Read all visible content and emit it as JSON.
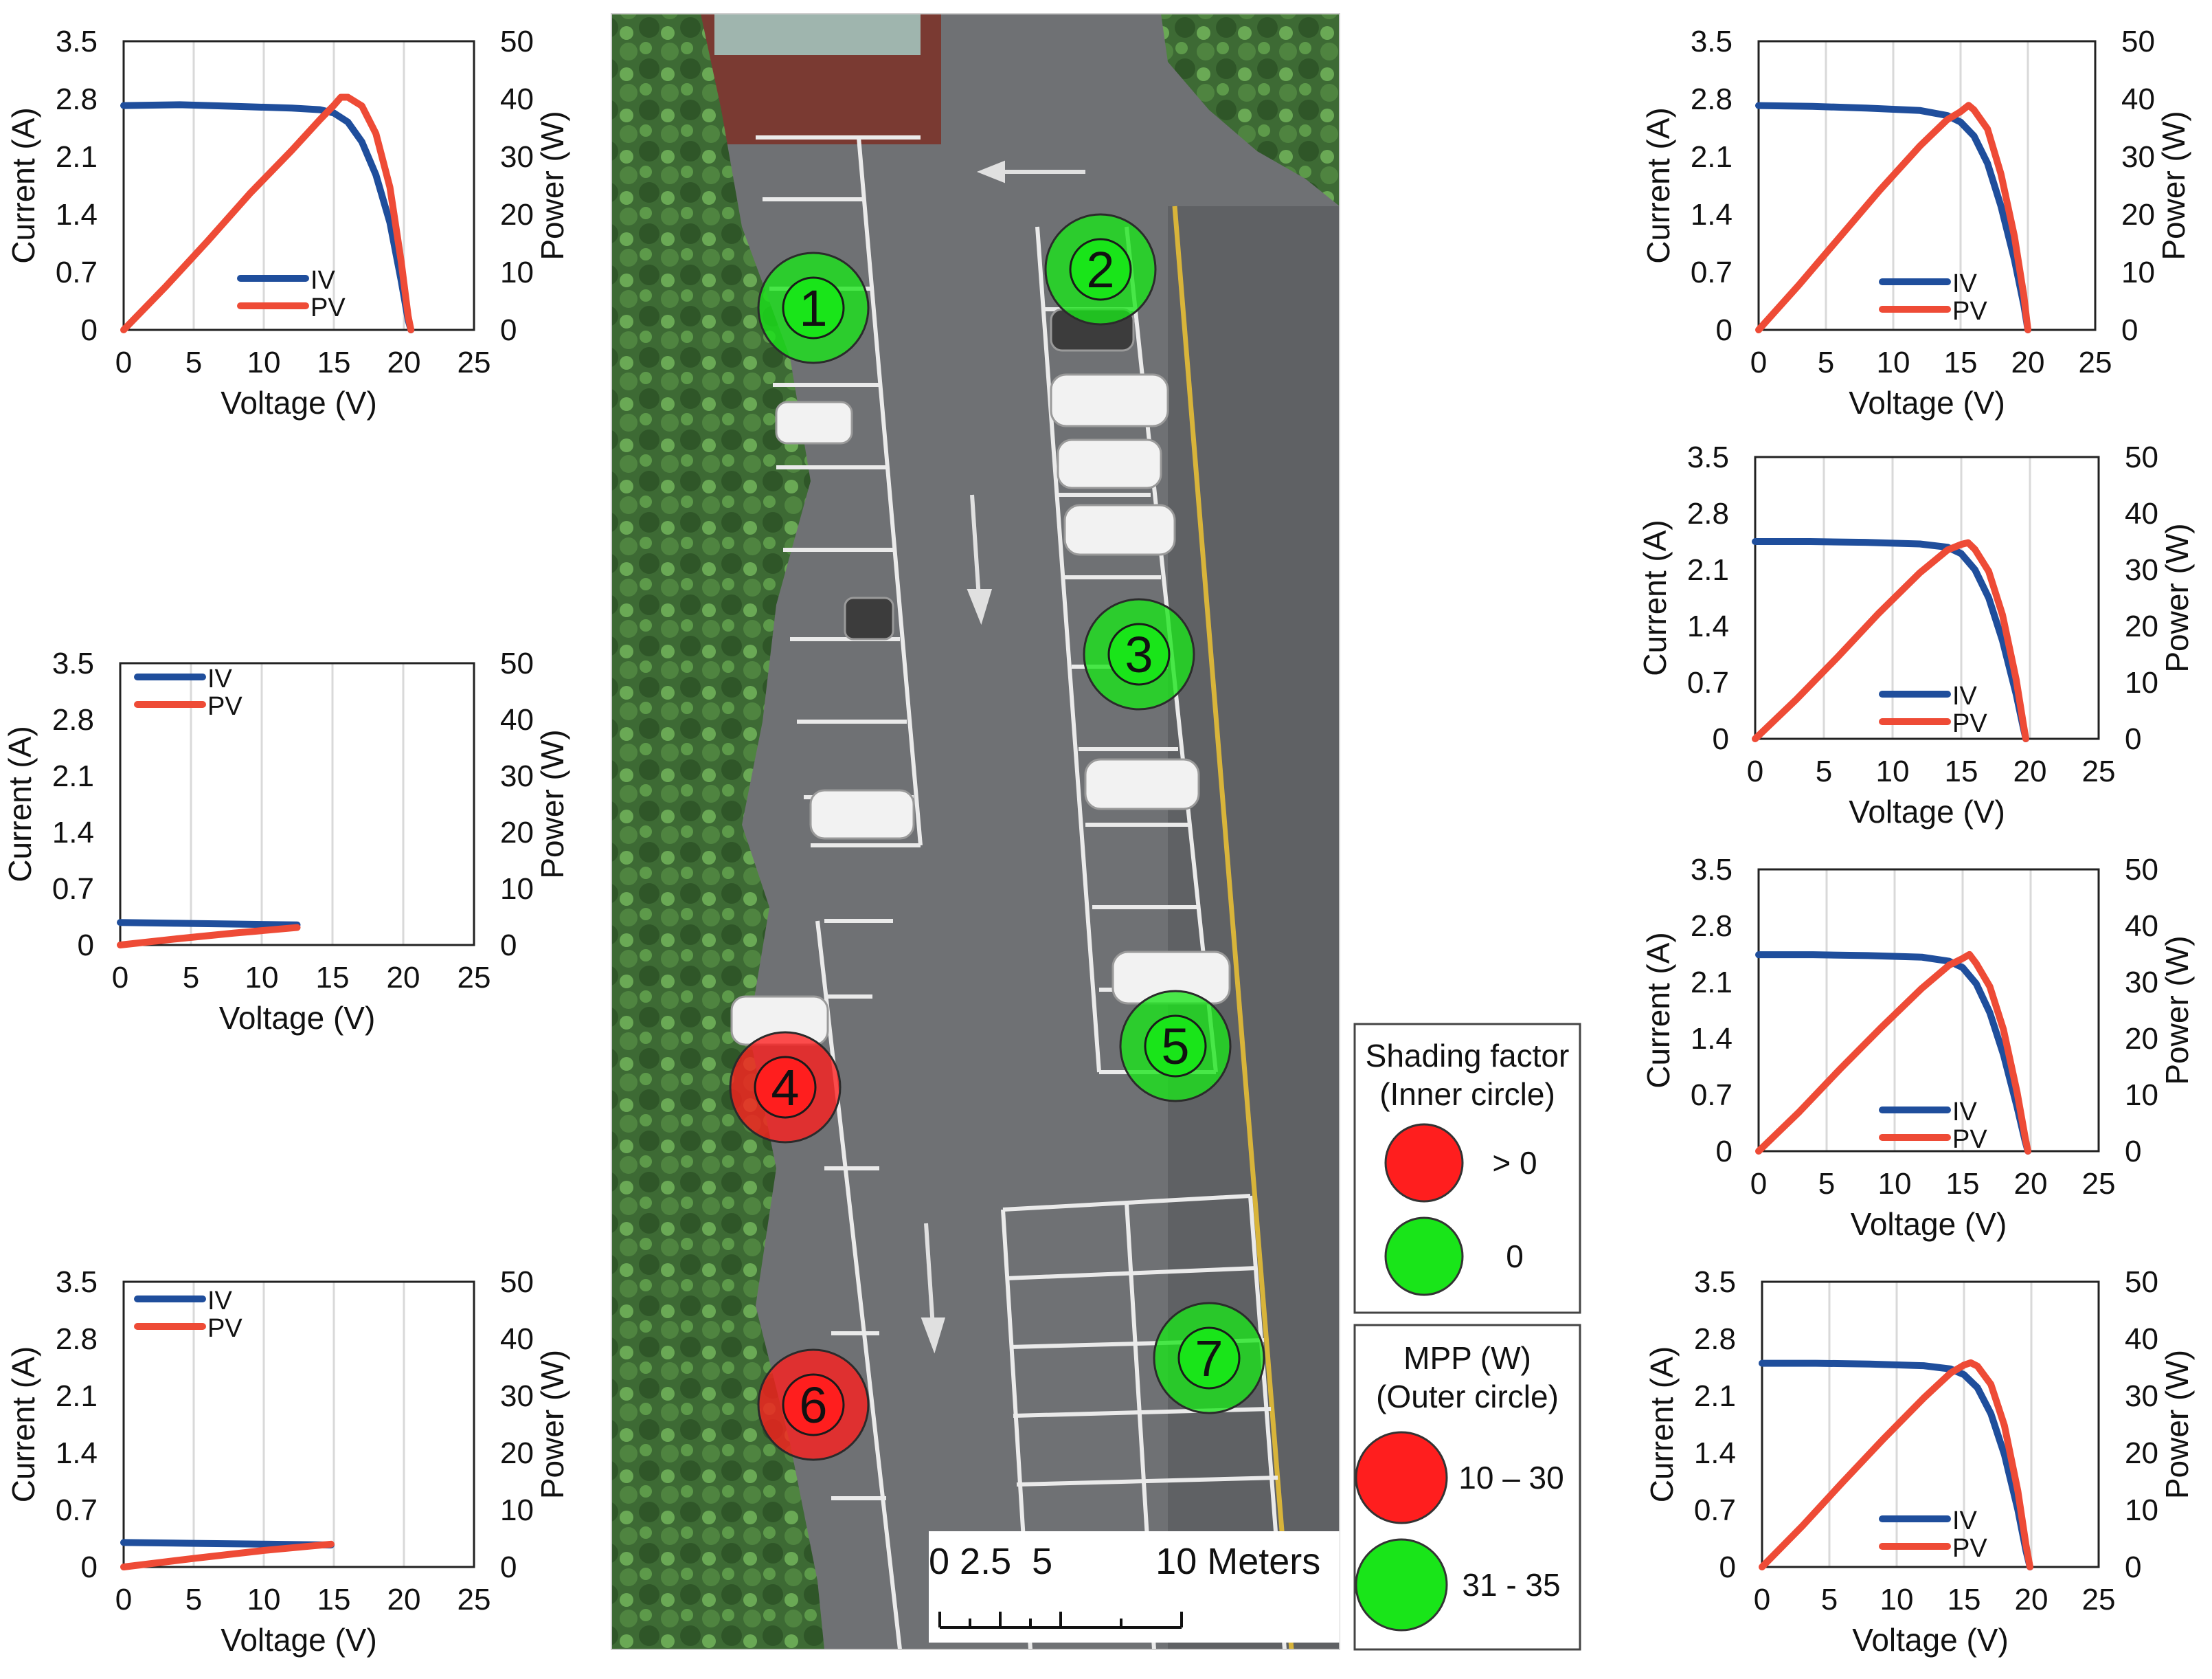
{
  "axes_text": {
    "xlabel": "Voltage (V)",
    "ylabel_left": "Current (A)",
    "ylabel_right": "Power (W)",
    "legend_iv": "IV",
    "legend_pv": "PV"
  },
  "colors": {
    "iv": "#1f4e9c",
    "pv": "#ee4b36",
    "marker_red": "#ff1e1e",
    "marker_green": "#19e519",
    "map_asphalt": "#6f7174",
    "map_trees": "#3f6b35",
    "map_brick": "#7a3a32"
  },
  "chart_data": [
    {
      "type": "line",
      "panel": "left-top",
      "xlabel": "Voltage (V)",
      "ylabel": "Current (A)",
      "y2label": "Power (W)",
      "xlim": [
        0,
        25
      ],
      "ylim": [
        0,
        3.5
      ],
      "y2lim": [
        0,
        50
      ],
      "xticks": [
        0,
        5,
        10,
        15,
        20,
        25
      ],
      "yticks": [
        0,
        0.7,
        1.4,
        2.1,
        2.8,
        3.5
      ],
      "y2ticks": [
        0,
        10,
        20,
        30,
        40,
        50
      ],
      "legend_position": "bottom-center",
      "series": [
        {
          "name": "IV",
          "axis": "left",
          "points": [
            [
              0,
              2.72
            ],
            [
              4,
              2.73
            ],
            [
              8,
              2.71
            ],
            [
              12,
              2.69
            ],
            [
              14,
              2.67
            ],
            [
              15,
              2.63
            ],
            [
              16,
              2.52
            ],
            [
              17,
              2.28
            ],
            [
              18,
              1.88
            ],
            [
              19,
              1.3
            ],
            [
              19.8,
              0.6
            ],
            [
              20.3,
              0.12
            ],
            [
              20.5,
              0
            ]
          ]
        },
        {
          "name": "PV",
          "axis": "right",
          "points": [
            [
              0,
              0
            ],
            [
              3,
              7.5
            ],
            [
              6,
              15.4
            ],
            [
              9,
              23.6
            ],
            [
              12,
              31.1
            ],
            [
              14,
              36.4
            ],
            [
              15,
              38.9
            ],
            [
              15.5,
              40.3
            ],
            [
              16,
              40.3
            ],
            [
              17,
              38.8
            ],
            [
              18,
              34
            ],
            [
              19,
              24.7
            ],
            [
              19.8,
              11.9
            ],
            [
              20.3,
              2.4
            ],
            [
              20.5,
              0
            ]
          ]
        }
      ]
    },
    {
      "type": "line",
      "panel": "left-middle",
      "xlabel": "Voltage (V)",
      "ylabel": "Current (A)",
      "y2label": "Power (W)",
      "xlim": [
        0,
        25
      ],
      "ylim": [
        0,
        3.5
      ],
      "y2lim": [
        0,
        50
      ],
      "xticks": [
        0,
        5,
        10,
        15,
        20,
        25
      ],
      "yticks": [
        0,
        0.7,
        1.4,
        2.1,
        2.8,
        3.5
      ],
      "y2ticks": [
        0,
        10,
        20,
        30,
        40,
        50
      ],
      "legend_position": "top-left",
      "series": [
        {
          "name": "IV",
          "axis": "left",
          "points": [
            [
              0,
              0.28
            ],
            [
              4,
              0.27
            ],
            [
              8,
              0.26
            ],
            [
              12.5,
              0.25
            ]
          ]
        },
        {
          "name": "PV",
          "axis": "right",
          "points": [
            [
              0,
              0
            ],
            [
              4,
              1.1
            ],
            [
              8,
              2.1
            ],
            [
              12.5,
              3.1
            ]
          ]
        }
      ]
    },
    {
      "type": "line",
      "panel": "left-bottom",
      "xlabel": "Voltage (V)",
      "ylabel": "Current (A)",
      "y2label": "Power (W)",
      "xlim": [
        0,
        25
      ],
      "ylim": [
        0,
        3.5
      ],
      "y2lim": [
        0,
        50
      ],
      "xticks": [
        0,
        5,
        10,
        15,
        20,
        25
      ],
      "yticks": [
        0,
        0.7,
        1.4,
        2.1,
        2.8,
        3.5
      ],
      "y2ticks": [
        0,
        10,
        20,
        30,
        40,
        50
      ],
      "legend_position": "top-left",
      "series": [
        {
          "name": "IV",
          "axis": "left",
          "points": [
            [
              0,
              0.3
            ],
            [
              5,
              0.29
            ],
            [
              10,
              0.28
            ],
            [
              14.8,
              0.27
            ]
          ]
        },
        {
          "name": "PV",
          "axis": "right",
          "points": [
            [
              0,
              0
            ],
            [
              5,
              1.5
            ],
            [
              10,
              2.9
            ],
            [
              14.8,
              4.0
            ]
          ]
        }
      ]
    },
    {
      "type": "line",
      "panel": "right-1",
      "xlabel": "Voltage (V)",
      "ylabel": "Current (A)",
      "y2label": "Power (W)",
      "xlim": [
        0,
        25
      ],
      "ylim": [
        0,
        3.5
      ],
      "y2lim": [
        0,
        50
      ],
      "xticks": [
        0,
        5,
        10,
        15,
        20,
        25
      ],
      "yticks": [
        0,
        0.7,
        1.4,
        2.1,
        2.8,
        3.5
      ],
      "y2ticks": [
        0,
        10,
        20,
        30,
        40,
        50
      ],
      "legend_position": "bottom-center",
      "series": [
        {
          "name": "IV",
          "axis": "left",
          "points": [
            [
              0,
              2.72
            ],
            [
              4,
              2.71
            ],
            [
              8,
              2.69
            ],
            [
              12,
              2.66
            ],
            [
              14,
              2.6
            ],
            [
              15,
              2.52
            ],
            [
              16,
              2.35
            ],
            [
              17,
              2.02
            ],
            [
              18,
              1.5
            ],
            [
              19,
              0.85
            ],
            [
              19.7,
              0.3
            ],
            [
              20,
              0
            ]
          ]
        },
        {
          "name": "PV",
          "axis": "right",
          "points": [
            [
              0,
              0
            ],
            [
              3,
              7.8
            ],
            [
              6,
              16
            ],
            [
              9,
              24.2
            ],
            [
              12,
              31.9
            ],
            [
              14,
              36.4
            ],
            [
              15,
              37.8
            ],
            [
              15.6,
              38.9
            ],
            [
              16,
              38.1
            ],
            [
              17,
              34.8
            ],
            [
              18,
              27
            ],
            [
              19,
              16.2
            ],
            [
              19.7,
              5.9
            ],
            [
              20,
              0
            ]
          ]
        }
      ]
    },
    {
      "type": "line",
      "panel": "right-2",
      "xlabel": "Voltage (V)",
      "ylabel": "Current (A)",
      "y2label": "Power (W)",
      "xlim": [
        0,
        25
      ],
      "ylim": [
        0,
        3.5
      ],
      "y2lim": [
        0,
        50
      ],
      "xticks": [
        0,
        5,
        10,
        15,
        20,
        25
      ],
      "yticks": [
        0,
        0.7,
        1.4,
        2.1,
        2.8,
        3.5
      ],
      "y2ticks": [
        0,
        10,
        20,
        30,
        40,
        50
      ],
      "legend_position": "bottom-center",
      "series": [
        {
          "name": "IV",
          "axis": "left",
          "points": [
            [
              0,
              2.45
            ],
            [
              4,
              2.45
            ],
            [
              8,
              2.44
            ],
            [
              12,
              2.42
            ],
            [
              14,
              2.38
            ],
            [
              15,
              2.3
            ],
            [
              16,
              2.1
            ],
            [
              17,
              1.75
            ],
            [
              18,
              1.22
            ],
            [
              19,
              0.55
            ],
            [
              19.5,
              0.15
            ],
            [
              19.7,
              0
            ]
          ]
        },
        {
          "name": "PV",
          "axis": "right",
          "points": [
            [
              0,
              0
            ],
            [
              3,
              7
            ],
            [
              6,
              14.5
            ],
            [
              9,
              22.3
            ],
            [
              12,
              29.5
            ],
            [
              14,
              33.5
            ],
            [
              15,
              34.5
            ],
            [
              15.5,
              34.8
            ],
            [
              16,
              33.6
            ],
            [
              17,
              29.7
            ],
            [
              18,
              22
            ],
            [
              19,
              10.5
            ],
            [
              19.5,
              2.9
            ],
            [
              19.7,
              0
            ]
          ]
        }
      ]
    },
    {
      "type": "line",
      "panel": "right-3",
      "xlabel": "Voltage (V)",
      "ylabel": "Current (A)",
      "y2label": "Power (W)",
      "xlim": [
        0,
        25
      ],
      "ylim": [
        0,
        3.5
      ],
      "y2lim": [
        0,
        50
      ],
      "xticks": [
        0,
        5,
        10,
        15,
        20,
        25
      ],
      "yticks": [
        0,
        0.7,
        1.4,
        2.1,
        2.8,
        3.5
      ],
      "y2ticks": [
        0,
        10,
        20,
        30,
        40,
        50
      ],
      "legend_position": "bottom-center",
      "series": [
        {
          "name": "IV",
          "axis": "left",
          "points": [
            [
              0,
              2.44
            ],
            [
              4,
              2.44
            ],
            [
              8,
              2.43
            ],
            [
              12,
              2.41
            ],
            [
              14,
              2.36
            ],
            [
              15,
              2.28
            ],
            [
              16,
              2.08
            ],
            [
              17,
              1.72
            ],
            [
              18,
              1.2
            ],
            [
              19,
              0.55
            ],
            [
              19.6,
              0.12
            ],
            [
              19.8,
              0
            ]
          ]
        },
        {
          "name": "PV",
          "axis": "right",
          "points": [
            [
              0,
              0
            ],
            [
              3,
              7
            ],
            [
              6,
              14.6
            ],
            [
              9,
              21.9
            ],
            [
              12,
              28.9
            ],
            [
              14,
              33
            ],
            [
              15,
              34.2
            ],
            [
              15.5,
              34.9
            ],
            [
              16,
              33.3
            ],
            [
              17,
              29.2
            ],
            [
              18,
              21.6
            ],
            [
              19,
              10.5
            ],
            [
              19.6,
              2.4
            ],
            [
              19.8,
              0
            ]
          ]
        }
      ]
    },
    {
      "type": "line",
      "panel": "right-4",
      "xlabel": "Voltage (V)",
      "ylabel": "Current (A)",
      "y2label": "Power (W)",
      "xlim": [
        0,
        25
      ],
      "ylim": [
        0,
        3.5
      ],
      "y2lim": [
        0,
        50
      ],
      "xticks": [
        0,
        5,
        10,
        15,
        20,
        25
      ],
      "yticks": [
        0,
        0.7,
        1.4,
        2.1,
        2.8,
        3.5
      ],
      "y2ticks": [
        0,
        10,
        20,
        30,
        40,
        50
      ],
      "legend_position": "bottom-center",
      "series": [
        {
          "name": "IV",
          "axis": "left",
          "points": [
            [
              0,
              2.5
            ],
            [
              4,
              2.5
            ],
            [
              8,
              2.49
            ],
            [
              12,
              2.47
            ],
            [
              14,
              2.43
            ],
            [
              15,
              2.36
            ],
            [
              16,
              2.2
            ],
            [
              17,
              1.88
            ],
            [
              18,
              1.38
            ],
            [
              19,
              0.7
            ],
            [
              19.6,
              0.2
            ],
            [
              19.9,
              0
            ]
          ]
        },
        {
          "name": "PV",
          "axis": "right",
          "points": [
            [
              0,
              0
            ],
            [
              3,
              7.2
            ],
            [
              6,
              14.9
            ],
            [
              9,
              22.4
            ],
            [
              12,
              29.6
            ],
            [
              14,
              34
            ],
            [
              15,
              35.4
            ],
            [
              15.5,
              35.8
            ],
            [
              16,
              35.2
            ],
            [
              17,
              32
            ],
            [
              18,
              24.8
            ],
            [
              19,
              13.3
            ],
            [
              19.6,
              3.9
            ],
            [
              19.9,
              0
            ]
          ]
        }
      ]
    }
  ],
  "map": {
    "markers": [
      {
        "label": "1",
        "outer": "green",
        "inner": "green"
      },
      {
        "label": "2",
        "outer": "green",
        "inner": "green"
      },
      {
        "label": "3",
        "outer": "green",
        "inner": "green"
      },
      {
        "label": "4",
        "outer": "red",
        "inner": "red"
      },
      {
        "label": "5",
        "outer": "green",
        "inner": "green"
      },
      {
        "label": "6",
        "outer": "red",
        "inner": "red"
      },
      {
        "label": "7",
        "outer": "green",
        "inner": "green"
      }
    ],
    "scale_bar": {
      "label": "0 2.5  5          10 Meters",
      "ticks_m": [
        0,
        2.5,
        5,
        10
      ]
    }
  },
  "legend_shading": {
    "title_line1": "Shading factor",
    "title_line2": "(Inner circle)",
    "items": [
      {
        "label": "> 0",
        "color": "#ff1e1e"
      },
      {
        "label": "0",
        "color": "#19e519"
      }
    ]
  },
  "legend_mpp": {
    "title_line1": "MPP (W)",
    "title_line2": "(Outer circle)",
    "items": [
      {
        "label": "10 – 30",
        "color": "#ff1e1e"
      },
      {
        "label": "31 - 35",
        "color": "#19e519"
      }
    ]
  }
}
